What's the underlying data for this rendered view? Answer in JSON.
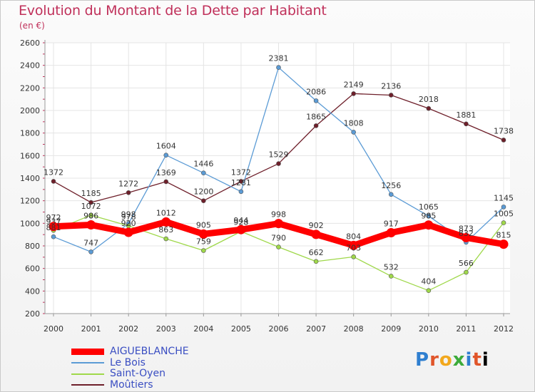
{
  "title": "Evolution du Montant de la Dette par Habitant",
  "unit": "(en €)",
  "logo": "Proxiti",
  "chart_data": {
    "type": "line",
    "x": [
      "2000",
      "2001",
      "2002",
      "2003",
      "2004",
      "2005",
      "2006",
      "2007",
      "2008",
      "2009",
      "2010",
      "2011",
      "2012"
    ],
    "ylim": [
      200,
      2600
    ],
    "yticks": [
      200,
      400,
      600,
      800,
      1000,
      1200,
      1400,
      1600,
      1800,
      2000,
      2200,
      2400,
      2600
    ],
    "grid": true,
    "legend_position": "bottom-left",
    "series": [
      {
        "name": "Moûtiers",
        "color": "#6e1f2a",
        "values": [
          1372,
          1185,
          1272,
          1369,
          1200,
          1372,
          1529,
          1865,
          2149,
          2136,
          2018,
          1881,
          1738
        ]
      },
      {
        "name": "Le Bois",
        "color": "#5b9bd5",
        "values": [
          881,
          747,
          998,
          1604,
          1446,
          1281,
          2381,
          2086,
          1808,
          1256,
          1065,
          832,
          1145
        ]
      },
      {
        "name": "Saint-Oyen",
        "color": "#9fd84a",
        "values": [
          937,
          1072,
          978,
          863,
          759,
          928,
          790,
          662,
          703,
          532,
          404,
          566,
          1005
        ]
      },
      {
        "name": "AIGUEBLANCHE",
        "color": "#ff0000",
        "values": [
          972,
          986,
          920,
          1012,
          905,
          944,
          998,
          902,
          804,
          917,
          985,
          873,
          815
        ]
      }
    ]
  }
}
